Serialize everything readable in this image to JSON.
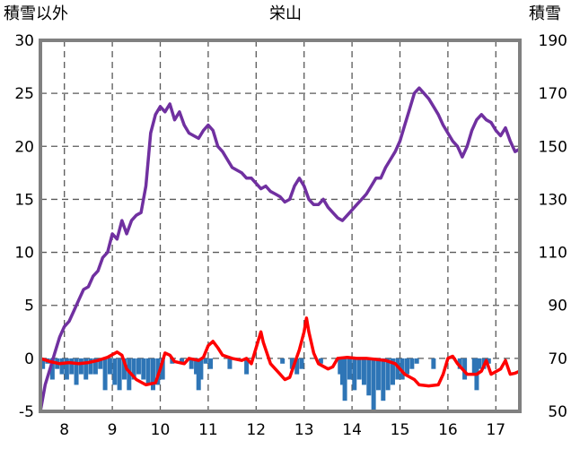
{
  "chart_data": {
    "type": "line",
    "title": "栄山",
    "left_axis_label": "積雪以外",
    "right_axis_label": "積雪",
    "left_ylim": [
      -5,
      30
    ],
    "left_ticks": [
      -5,
      0,
      5,
      10,
      15,
      20,
      25,
      30
    ],
    "right_ylim": [
      50,
      190
    ],
    "right_ticks": [
      50,
      70,
      90,
      110,
      130,
      150,
      170,
      190
    ],
    "xlim": [
      7.5,
      17.5
    ],
    "x_ticks": [
      8,
      9,
      10,
      11,
      12,
      13,
      14,
      15,
      16,
      17
    ],
    "grid": true,
    "colors": {
      "snow": "#7030a0",
      "temperature": "#ff0000",
      "precipitation": "#2e75b6",
      "frame": "#808080"
    },
    "series": [
      {
        "axis": "right",
        "points": [
          [
            7.5,
            50
          ],
          [
            7.6,
            60
          ],
          [
            7.7,
            66
          ],
          [
            7.8,
            72
          ],
          [
            7.9,
            78
          ],
          [
            8.0,
            82
          ],
          [
            8.1,
            84
          ],
          [
            8.2,
            88
          ],
          [
            8.3,
            92
          ],
          [
            8.4,
            96
          ],
          [
            8.5,
            97
          ],
          [
            8.6,
            101
          ],
          [
            8.7,
            103
          ],
          [
            8.8,
            108
          ],
          [
            8.9,
            110
          ],
          [
            9.0,
            117
          ],
          [
            9.1,
            115
          ],
          [
            9.2,
            122
          ],
          [
            9.3,
            117
          ],
          [
            9.4,
            122
          ],
          [
            9.5,
            124
          ],
          [
            9.6,
            125
          ],
          [
            9.7,
            135
          ],
          [
            9.8,
            155
          ],
          [
            9.9,
            162
          ],
          [
            10.0,
            165
          ],
          [
            10.1,
            163
          ],
          [
            10.2,
            166
          ],
          [
            10.3,
            160
          ],
          [
            10.4,
            163
          ],
          [
            10.5,
            158
          ],
          [
            10.6,
            155
          ],
          [
            10.7,
            154
          ],
          [
            10.8,
            153
          ],
          [
            10.9,
            156
          ],
          [
            11.0,
            158
          ],
          [
            11.1,
            156
          ],
          [
            11.2,
            150
          ],
          [
            11.3,
            148
          ],
          [
            11.4,
            145
          ],
          [
            11.5,
            142
          ],
          [
            11.6,
            141
          ],
          [
            11.7,
            140
          ],
          [
            11.8,
            138
          ],
          [
            11.9,
            138
          ],
          [
            12.0,
            136
          ],
          [
            12.1,
            134
          ],
          [
            12.2,
            135
          ],
          [
            12.3,
            133
          ],
          [
            12.4,
            132
          ],
          [
            12.5,
            131
          ],
          [
            12.6,
            129
          ],
          [
            12.7,
            130
          ],
          [
            12.8,
            135
          ],
          [
            12.9,
            138
          ],
          [
            13.0,
            135
          ],
          [
            13.1,
            130
          ],
          [
            13.2,
            128
          ],
          [
            13.3,
            128
          ],
          [
            13.4,
            130
          ],
          [
            13.5,
            127
          ],
          [
            13.6,
            125
          ],
          [
            13.7,
            123
          ],
          [
            13.8,
            122
          ],
          [
            13.9,
            124
          ],
          [
            14.0,
            126
          ],
          [
            14.1,
            128
          ],
          [
            14.2,
            130
          ],
          [
            14.3,
            132
          ],
          [
            14.4,
            135
          ],
          [
            14.5,
            138
          ],
          [
            14.6,
            138
          ],
          [
            14.7,
            142
          ],
          [
            14.8,
            145
          ],
          [
            14.9,
            148
          ],
          [
            15.0,
            152
          ],
          [
            15.1,
            158
          ],
          [
            15.2,
            164
          ],
          [
            15.3,
            170
          ],
          [
            15.4,
            172
          ],
          [
            15.5,
            170
          ],
          [
            15.6,
            168
          ],
          [
            15.7,
            165
          ],
          [
            15.8,
            162
          ],
          [
            15.9,
            158
          ],
          [
            16.0,
            155
          ],
          [
            16.1,
            152
          ],
          [
            16.2,
            150
          ],
          [
            16.3,
            146
          ],
          [
            16.4,
            150
          ],
          [
            16.5,
            156
          ],
          [
            16.6,
            160
          ],
          [
            16.7,
            162
          ],
          [
            16.8,
            160
          ],
          [
            16.9,
            159
          ],
          [
            17.0,
            156
          ],
          [
            17.1,
            154
          ],
          [
            17.2,
            157
          ],
          [
            17.3,
            152
          ],
          [
            17.4,
            148
          ],
          [
            17.5,
            149
          ]
        ]
      },
      {
        "axis": "left",
        "points": [
          [
            7.5,
            0
          ],
          [
            7.7,
            -0.3
          ],
          [
            7.9,
            -0.5
          ],
          [
            8.1,
            -0.4
          ],
          [
            8.3,
            -0.5
          ],
          [
            8.5,
            -0.4
          ],
          [
            8.7,
            -0.2
          ],
          [
            8.9,
            0.1
          ],
          [
            9.1,
            0.6
          ],
          [
            9.2,
            0.3
          ],
          [
            9.3,
            -1.0
          ],
          [
            9.5,
            -2.0
          ],
          [
            9.7,
            -2.5
          ],
          [
            9.9,
            -2.3
          ],
          [
            10.0,
            -1.0
          ],
          [
            10.1,
            0.5
          ],
          [
            10.2,
            0.3
          ],
          [
            10.3,
            -0.3
          ],
          [
            10.5,
            -0.5
          ],
          [
            10.6,
            0.0
          ],
          [
            10.8,
            -0.2
          ],
          [
            10.9,
            0.1
          ],
          [
            11.0,
            1.2
          ],
          [
            11.1,
            1.6
          ],
          [
            11.2,
            1.0
          ],
          [
            11.3,
            0.3
          ],
          [
            11.5,
            0.0
          ],
          [
            11.7,
            -0.2
          ],
          [
            11.8,
            0.0
          ],
          [
            11.9,
            -0.5
          ],
          [
            12.0,
            1.0
          ],
          [
            12.1,
            2.5
          ],
          [
            12.15,
            1.5
          ],
          [
            12.3,
            -0.5
          ],
          [
            12.5,
            -1.5
          ],
          [
            12.6,
            -2.0
          ],
          [
            12.7,
            -1.8
          ],
          [
            12.8,
            -0.5
          ],
          [
            12.9,
            0.8
          ],
          [
            13.0,
            2.5
          ],
          [
            13.05,
            3.8
          ],
          [
            13.1,
            2.5
          ],
          [
            13.2,
            0.5
          ],
          [
            13.3,
            -0.5
          ],
          [
            13.5,
            -1.0
          ],
          [
            13.6,
            -0.8
          ],
          [
            13.7,
            0.0
          ],
          [
            13.9,
            0.1
          ],
          [
            14.1,
            0.0
          ],
          [
            14.3,
            0.0
          ],
          [
            14.5,
            -0.1
          ],
          [
            14.7,
            -0.2
          ],
          [
            14.9,
            -0.5
          ],
          [
            15.1,
            -1.5
          ],
          [
            15.3,
            -2.0
          ],
          [
            15.4,
            -2.5
          ],
          [
            15.6,
            -2.6
          ],
          [
            15.8,
            -2.5
          ],
          [
            15.9,
            -1.5
          ],
          [
            16.0,
            0.0
          ],
          [
            16.1,
            0.2
          ],
          [
            16.2,
            -0.5
          ],
          [
            16.4,
            -1.5
          ],
          [
            16.6,
            -1.5
          ],
          [
            16.7,
            -1.2
          ],
          [
            16.8,
            -0.2
          ],
          [
            16.9,
            -1.5
          ],
          [
            17.1,
            -1.0
          ],
          [
            17.2,
            -0.2
          ],
          [
            17.3,
            -1.5
          ],
          [
            17.4,
            -1.4
          ],
          [
            17.5,
            -1.2
          ]
        ]
      },
      {
        "axis": "left",
        "type": "bar",
        "baseline": 0,
        "points": [
          [
            7.55,
            -1
          ],
          [
            7.65,
            -0.5
          ],
          [
            7.75,
            -2.0
          ],
          [
            7.85,
            -1.0
          ],
          [
            7.95,
            -1.5
          ],
          [
            8.05,
            -2.0
          ],
          [
            8.15,
            -1.5
          ],
          [
            8.25,
            -2.5
          ],
          [
            8.35,
            -1.5
          ],
          [
            8.45,
            -2.0
          ],
          [
            8.55,
            -1.5
          ],
          [
            8.65,
            -1.5
          ],
          [
            8.75,
            -1.0
          ],
          [
            8.85,
            -3.0
          ],
          [
            8.95,
            -1.5
          ],
          [
            9.05,
            -2.5
          ],
          [
            9.15,
            -3.0
          ],
          [
            9.25,
            -2.0
          ],
          [
            9.35,
            -3.0
          ],
          [
            9.45,
            -2.0
          ],
          [
            9.55,
            -1.5
          ],
          [
            9.65,
            -2.0
          ],
          [
            9.75,
            -2.5
          ],
          [
            9.85,
            -3.0
          ],
          [
            9.95,
            -2.5
          ],
          [
            10.05,
            -2.0
          ],
          [
            10.25,
            -0.5
          ],
          [
            10.45,
            -0.5
          ],
          [
            10.65,
            -1.0
          ],
          [
            10.75,
            -1.5
          ],
          [
            10.8,
            -3.0
          ],
          [
            10.85,
            -2.0
          ],
          [
            10.95,
            -0.5
          ],
          [
            11.05,
            -1.0
          ],
          [
            11.45,
            -1.0
          ],
          [
            11.8,
            -1.5
          ],
          [
            12.55,
            -0.5
          ],
          [
            12.75,
            -1.0
          ],
          [
            12.85,
            -1.5
          ],
          [
            12.95,
            -1.0
          ],
          [
            13.35,
            -0.5
          ],
          [
            13.75,
            -1.5
          ],
          [
            13.8,
            -2.5
          ],
          [
            13.85,
            -4.0
          ],
          [
            13.95,
            -2.0
          ],
          [
            14.05,
            -3.0
          ],
          [
            14.15,
            -2.0
          ],
          [
            14.25,
            -2.5
          ],
          [
            14.35,
            -3.5
          ],
          [
            14.45,
            -5.0
          ],
          [
            14.55,
            -3.0
          ],
          [
            14.65,
            -4.0
          ],
          [
            14.75,
            -3.0
          ],
          [
            14.85,
            -2.5
          ],
          [
            14.95,
            -2.0
          ],
          [
            15.05,
            -2.0
          ],
          [
            15.15,
            -1.5
          ],
          [
            15.25,
            -1.0
          ],
          [
            15.35,
            -0.5
          ],
          [
            15.7,
            -1.0
          ],
          [
            16.25,
            -1.0
          ],
          [
            16.35,
            -2.0
          ],
          [
            16.55,
            -1.5
          ],
          [
            16.6,
            -3.0
          ],
          [
            16.65,
            -1.0
          ],
          [
            16.75,
            -1.0
          ],
          [
            16.85,
            -0.5
          ]
        ]
      }
    ]
  }
}
